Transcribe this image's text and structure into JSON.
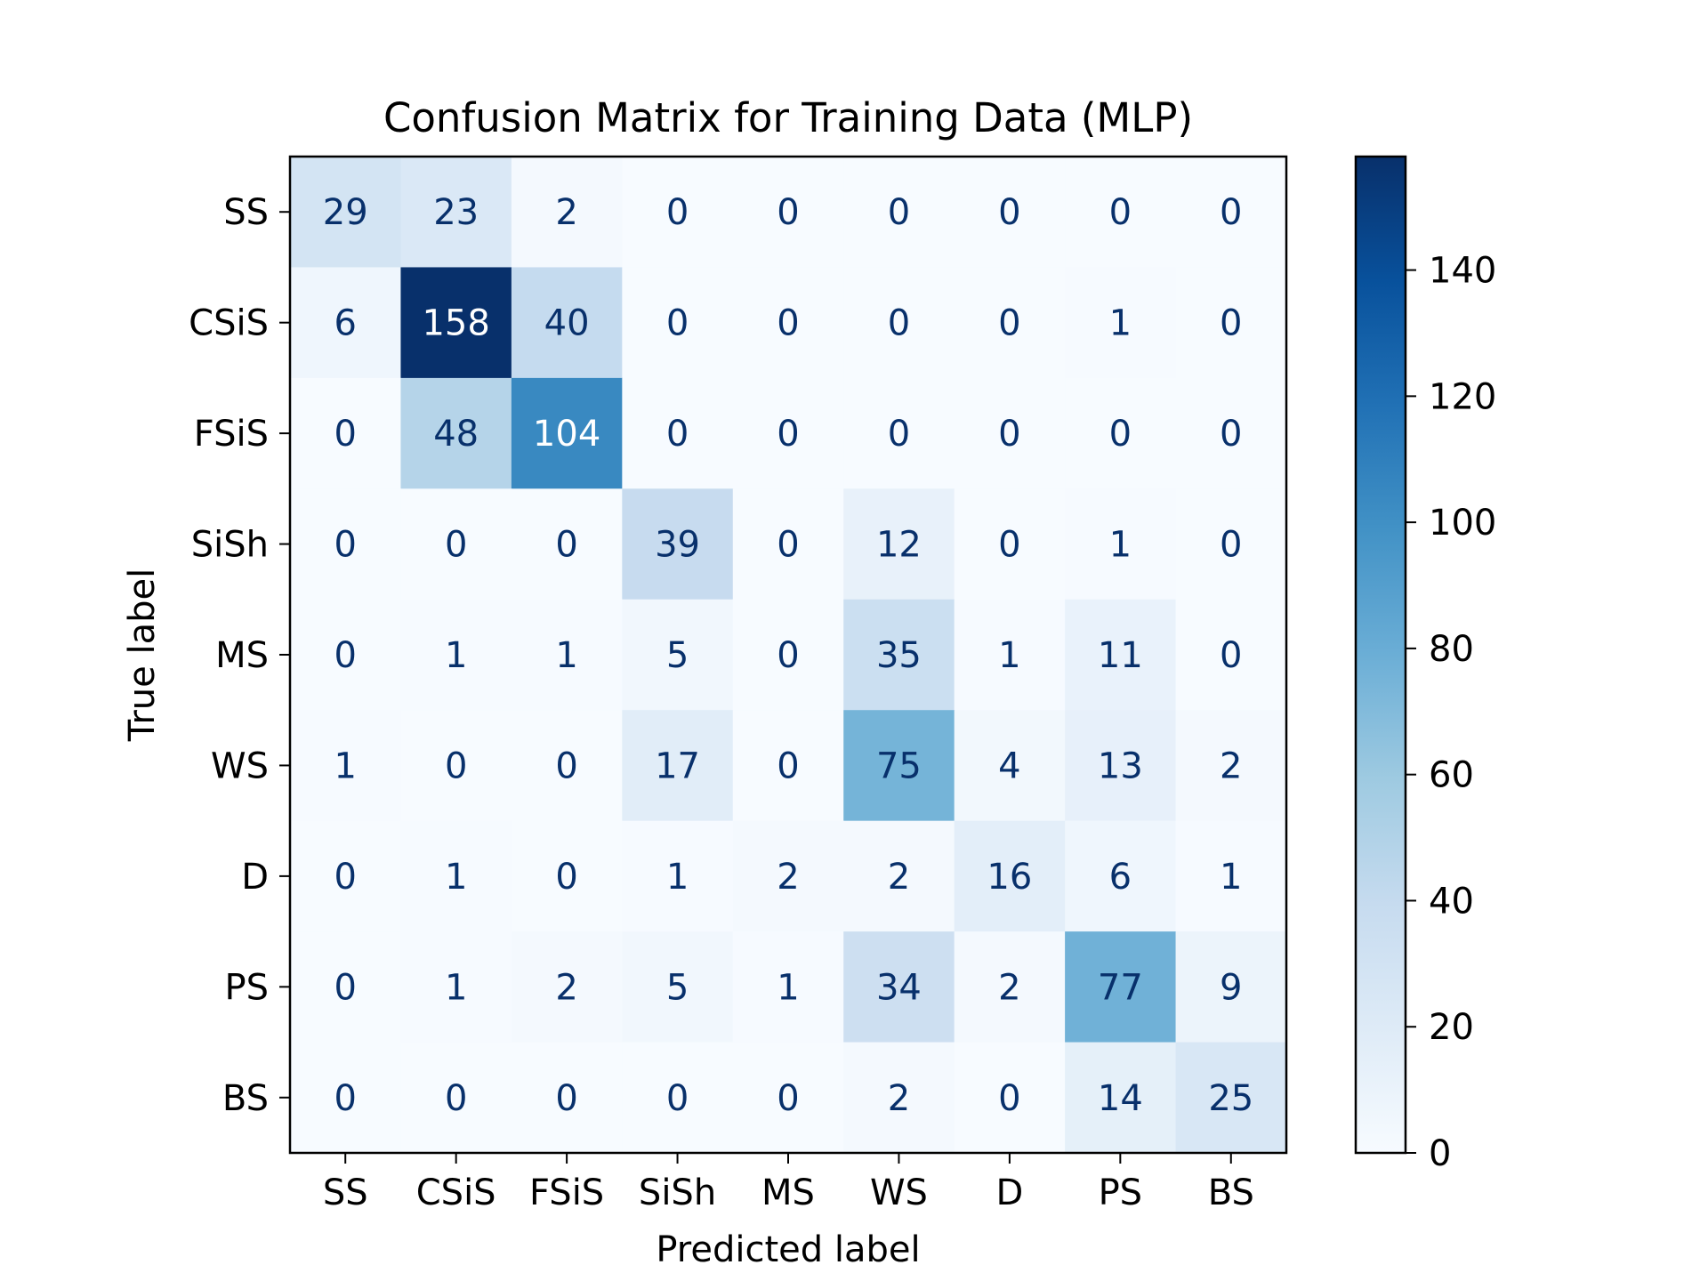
{
  "chart_data": {
    "type": "heatmap",
    "title": "Confusion Matrix for Training Data (MLP)",
    "xlabel": "Predicted label",
    "ylabel": "True label",
    "x_categories": [
      "SS",
      "CSiS",
      "FSiS",
      "SiSh",
      "MS",
      "WS",
      "D",
      "PS",
      "BS"
    ],
    "y_categories": [
      "SS",
      "CSiS",
      "FSiS",
      "SiSh",
      "MS",
      "WS",
      "D",
      "PS",
      "BS"
    ],
    "values": [
      [
        29,
        23,
        2,
        0,
        0,
        0,
        0,
        0,
        0
      ],
      [
        6,
        158,
        40,
        0,
        0,
        0,
        0,
        1,
        0
      ],
      [
        0,
        48,
        104,
        0,
        0,
        0,
        0,
        0,
        0
      ],
      [
        0,
        0,
        0,
        39,
        0,
        12,
        0,
        1,
        0
      ],
      [
        0,
        1,
        1,
        5,
        0,
        35,
        1,
        11,
        0
      ],
      [
        1,
        0,
        0,
        17,
        0,
        75,
        4,
        13,
        2
      ],
      [
        0,
        1,
        0,
        1,
        2,
        2,
        16,
        6,
        1
      ],
      [
        0,
        1,
        2,
        5,
        1,
        34,
        2,
        77,
        9
      ],
      [
        0,
        0,
        0,
        0,
        0,
        2,
        0,
        14,
        25
      ]
    ],
    "colormap": "Blues",
    "colormap_stops": [
      "#f7fbff",
      "#deebf7",
      "#c6dbef",
      "#9ecae1",
      "#6baed6",
      "#4292c6",
      "#2171b5",
      "#08519c",
      "#08306b"
    ],
    "text_color_light": "#ffffff",
    "text_color_dark": "#08306b",
    "colorbar": {
      "min": 0,
      "max": 158,
      "ticks": [
        0,
        20,
        40,
        60,
        80,
        100,
        120,
        140
      ]
    }
  }
}
